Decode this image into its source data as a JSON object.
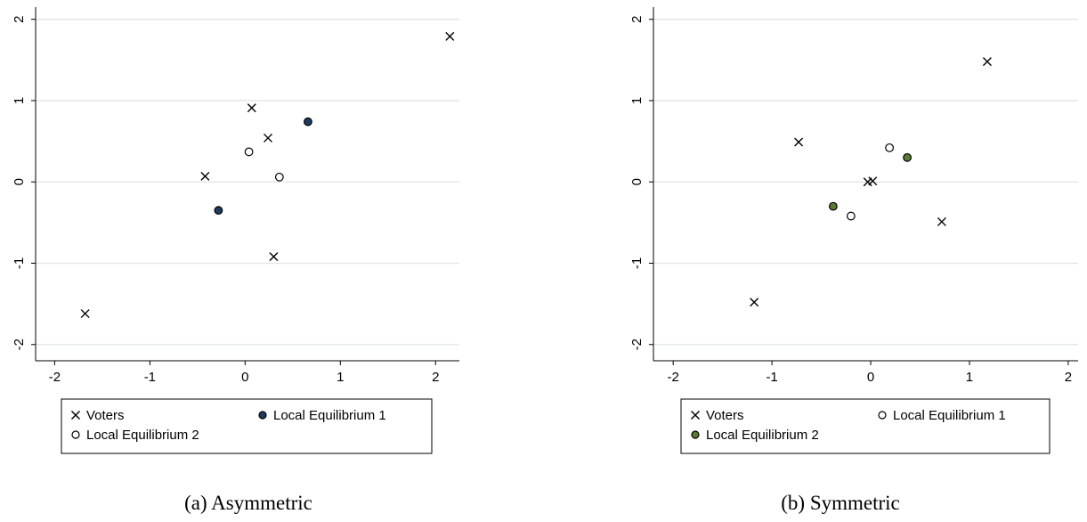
{
  "figure": {
    "captions": [
      "(a) Asymmetric",
      "(b) Symmetric"
    ]
  },
  "colors": {
    "gridline": "#dfe5ea",
    "axis": "#000000",
    "marker_stroke": "#000000",
    "hollow_fill": "#ffffff",
    "navy_fill": "#1e3b5e",
    "green_fill": "#5a7a34"
  },
  "chart_data": [
    {
      "type": "scatter",
      "title": "",
      "xlabel": "",
      "ylabel": "",
      "xlim": [
        -2.2,
        2.25
      ],
      "ylim": [
        -2.2,
        2.15
      ],
      "xticks": [
        -2,
        -1,
        0,
        1,
        2
      ],
      "yticks": [
        -2,
        -1,
        0,
        1,
        2
      ],
      "grid": "horizontal",
      "legend_position": "bottom",
      "series": [
        {
          "name": "Voters",
          "marker": "x",
          "fill": "",
          "points": [
            [
              -1.68,
              -1.62
            ],
            [
              -0.42,
              0.07
            ],
            [
              0.07,
              0.91
            ],
            [
              0.24,
              0.54
            ],
            [
              0.3,
              -0.92
            ],
            [
              2.15,
              1.79
            ]
          ]
        },
        {
          "name": "Local Equilibrium 1",
          "marker": "circle",
          "fill": "#1e3b5e",
          "points": [
            [
              -0.28,
              -0.35
            ],
            [
              0.66,
              0.74
            ]
          ]
        },
        {
          "name": "Local Equilibrium 2",
          "marker": "circle",
          "fill": "#ffffff",
          "points": [
            [
              0.04,
              0.37
            ],
            [
              0.36,
              0.06
            ]
          ]
        }
      ],
      "legend_order": [
        "Voters",
        "Local Equilibrium 1",
        "Local Equilibrium 2"
      ]
    },
    {
      "type": "scatter",
      "title": "",
      "xlabel": "",
      "ylabel": "",
      "xlim": [
        -2.2,
        2.1
      ],
      "ylim": [
        -2.2,
        2.15
      ],
      "xticks": [
        -2,
        -1,
        0,
        1,
        2
      ],
      "yticks": [
        -2,
        -1,
        0,
        1,
        2
      ],
      "grid": "horizontal",
      "legend_position": "bottom",
      "series": [
        {
          "name": "Voters",
          "marker": "x",
          "fill": "",
          "points": [
            [
              -1.18,
              -1.48
            ],
            [
              -0.73,
              0.49
            ],
            [
              -0.03,
              0.0
            ],
            [
              0.02,
              0.01
            ],
            [
              0.72,
              -0.49
            ],
            [
              1.18,
              1.48
            ]
          ]
        },
        {
          "name": "Local Equilibrium 1",
          "marker": "circle",
          "fill": "#ffffff",
          "points": [
            [
              -0.2,
              -0.42
            ],
            [
              0.19,
              0.42
            ]
          ]
        },
        {
          "name": "Local Equilibrium 2",
          "marker": "circle",
          "fill": "#5a7a34",
          "points": [
            [
              -0.38,
              -0.3
            ],
            [
              0.37,
              0.3
            ]
          ]
        }
      ],
      "legend_order": [
        "Voters",
        "Local Equilibrium 1",
        "Local Equilibrium 2"
      ]
    }
  ]
}
